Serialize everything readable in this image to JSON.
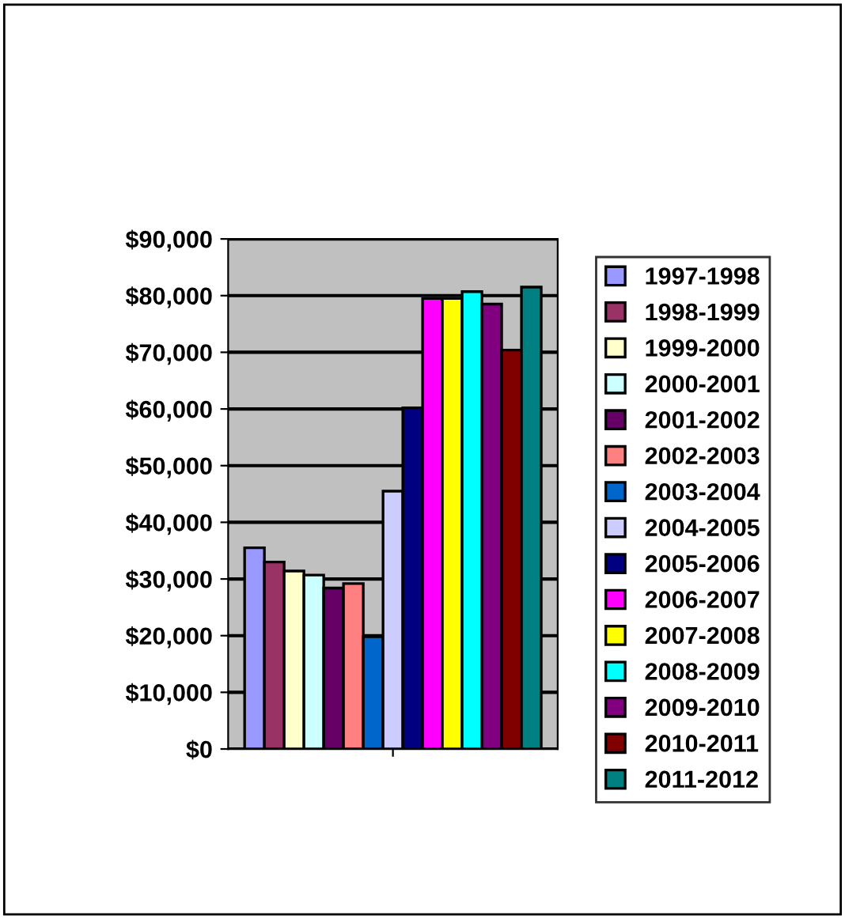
{
  "chart_data": {
    "type": "bar",
    "categories": [
      null
    ],
    "series": [
      {
        "name": "1997-1998",
        "color": "#9999ff",
        "values": [
          35500
        ]
      },
      {
        "name": "1998-1999",
        "color": "#993366",
        "values": [
          33000
        ]
      },
      {
        "name": "1999-2000",
        "color": "#ffffcc",
        "values": [
          31400
        ]
      },
      {
        "name": "2000-2001",
        "color": "#ccffff",
        "values": [
          30700
        ]
      },
      {
        "name": "2001-2002",
        "color": "#660066",
        "values": [
          28400
        ]
      },
      {
        "name": "2002-2003",
        "color": "#ff8080",
        "values": [
          29200
        ]
      },
      {
        "name": "2003-2004",
        "color": "#0066cc",
        "values": [
          19800
        ]
      },
      {
        "name": "2004-2005",
        "color": "#ccccff",
        "values": [
          45500
        ]
      },
      {
        "name": "2005-2006",
        "color": "#000080",
        "values": [
          60200
        ]
      },
      {
        "name": "2006-2007",
        "color": "#ff00ff",
        "values": [
          79500
        ]
      },
      {
        "name": "2007-2008",
        "color": "#ffff00",
        "values": [
          79500
        ]
      },
      {
        "name": "2008-2009",
        "color": "#00ffff",
        "values": [
          80700
        ]
      },
      {
        "name": "2009-2010",
        "color": "#800080",
        "values": [
          78500
        ]
      },
      {
        "name": "2010-2011",
        "color": "#800000",
        "values": [
          70400
        ]
      },
      {
        "name": "2011-2012",
        "color": "#008080",
        "values": [
          81500
        ]
      }
    ],
    "ylim": [
      0,
      90000
    ],
    "yticks": [
      {
        "value": 0,
        "label": "$0"
      },
      {
        "value": 10000,
        "label": "$10,000"
      },
      {
        "value": 20000,
        "label": "$20,000"
      },
      {
        "value": 30000,
        "label": "$30,000"
      },
      {
        "value": 40000,
        "label": "$40,000"
      },
      {
        "value": 50000,
        "label": "$50,000"
      },
      {
        "value": 60000,
        "label": "$60,000"
      },
      {
        "value": 70000,
        "label": "$70,000"
      },
      {
        "value": 80000,
        "label": "$80,000"
      },
      {
        "value": 90000,
        "label": "$90,000"
      }
    ],
    "grid": "y",
    "legend": "right"
  }
}
